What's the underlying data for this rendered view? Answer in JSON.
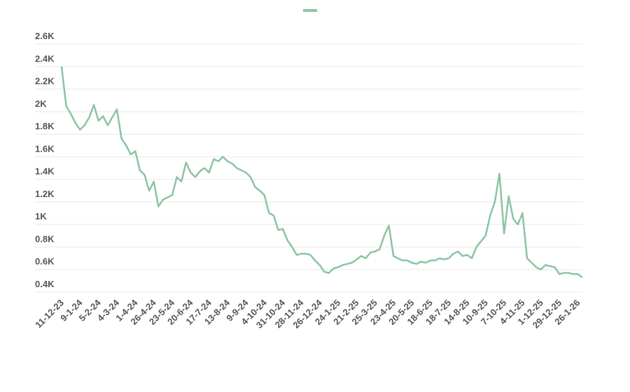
{
  "chart_data": {
    "type": "line",
    "categories": [
      "11-12-23",
      null,
      null,
      null,
      "9-1-24",
      null,
      null,
      null,
      "5-2-24",
      null,
      null,
      null,
      "4-3-24",
      null,
      null,
      null,
      "1-4-24",
      null,
      null,
      null,
      "26-4-24",
      null,
      null,
      null,
      "23-5-24",
      null,
      null,
      null,
      "20-6-24",
      null,
      null,
      null,
      "17-7-24",
      null,
      null,
      null,
      "13-8-24",
      null,
      null,
      null,
      "9-9-24",
      null,
      null,
      null,
      "4-10-24",
      null,
      null,
      null,
      "31-10-24",
      null,
      null,
      null,
      "28-11-24",
      null,
      null,
      null,
      "26-12-24",
      null,
      null,
      null,
      "24-1-25",
      null,
      null,
      null,
      "21-2-25",
      null,
      null,
      null,
      "25-3-25",
      null,
      null,
      null,
      "23-4-25",
      null,
      null,
      null,
      "20-5-25",
      null,
      null,
      null,
      "18-6-25",
      null,
      null,
      null,
      "18-7-25",
      null,
      null,
      null,
      "14-8-25",
      null,
      null,
      null,
      "10-9-25",
      null,
      null,
      null,
      "7-10-25",
      null,
      null,
      null,
      "4-11-25",
      null,
      null,
      null,
      "1-12-25",
      null,
      null,
      null,
      "29-12-25",
      null,
      null,
      null,
      "26-1-26",
      null
    ],
    "series": [
      {
        "color": "#8cc4a2",
        "values": [
          2400,
          2050,
          1980,
          1900,
          1840,
          1880,
          1950,
          2060,
          1920,
          1960,
          1880,
          1950,
          2020,
          1760,
          1700,
          1620,
          1650,
          1480,
          1440,
          1300,
          1380,
          1160,
          1220,
          1240,
          1260,
          1420,
          1380,
          1550,
          1460,
          1420,
          1470,
          1500,
          1460,
          1580,
          1560,
          1600,
          1560,
          1540,
          1500,
          1480,
          1460,
          1420,
          1330,
          1300,
          1260,
          1100,
          1080,
          950,
          960,
          860,
          800,
          730,
          740,
          740,
          730,
          680,
          640,
          580,
          570,
          610,
          620,
          640,
          650,
          660,
          690,
          720,
          700,
          750,
          760,
          780,
          900,
          990,
          720,
          700,
          680,
          680,
          660,
          650,
          670,
          660,
          680,
          680,
          700,
          690,
          700,
          740,
          760,
          720,
          730,
          700,
          800,
          850,
          900,
          1080,
          1200,
          1450,
          920,
          1250,
          1050,
          1000,
          1100,
          700,
          660,
          620,
          600,
          640,
          630,
          620,
          560,
          570,
          570,
          560,
          560,
          530
        ]
      }
    ],
    "ylim": [
      400,
      2600
    ],
    "yticks": [
      {
        "value": 400,
        "label": "0.4K"
      },
      {
        "value": 600,
        "label": "0.6K"
      },
      {
        "value": 800,
        "label": "0.8K"
      },
      {
        "value": 1000,
        "label": "1K"
      },
      {
        "value": 1200,
        "label": "1.2K"
      },
      {
        "value": 1400,
        "label": "1.4K"
      },
      {
        "value": 1600,
        "label": "1.6K"
      },
      {
        "value": 1800,
        "label": "1.8K"
      },
      {
        "value": 2000,
        "label": "2K"
      },
      {
        "value": 2200,
        "label": "2.2K"
      },
      {
        "value": 2400,
        "label": "2.4K"
      },
      {
        "value": 2600,
        "label": "2.6K"
      }
    ],
    "grid": true
  }
}
